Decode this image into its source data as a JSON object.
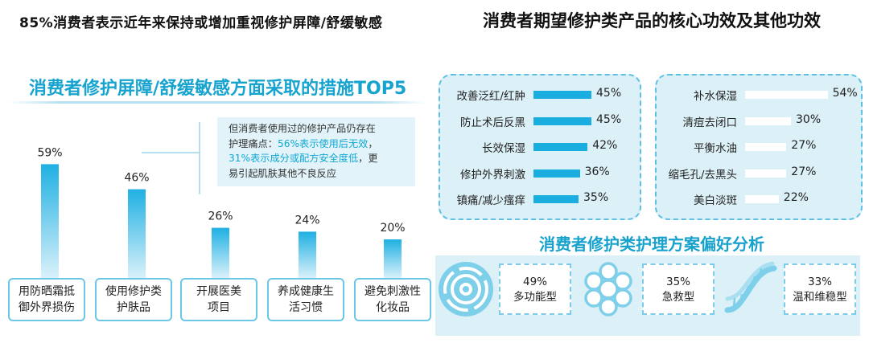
{
  "left": {
    "title": "85%消费者表示近年来保持或增加重视修护屏障/舒缓敏感",
    "subtitle": "消费者修护屏障/舒缓敏感方面采取的措施TOP5",
    "callout": {
      "line1": "但消费者使用过的修护产品仍存在",
      "line2a": "护理痛点：",
      "line2b": "56%表示使用后无效",
      "line2c": "，",
      "line3a": "31%表示成分或配方安全度低",
      "line3b": "，更",
      "line4": "易引起肌肤其他不良反应"
    },
    "categories": [
      {
        "line1": "用防晒霜抵",
        "line2": "御外界损伤"
      },
      {
        "line1": "使用修护类",
        "line2": "护肤品"
      },
      {
        "line1": "开展医美",
        "line2": "项目"
      },
      {
        "line1": "养成健康生",
        "line2": "活习惯"
      },
      {
        "line1": "避免刺激性",
        "line2": "化妆品"
      }
    ]
  },
  "right": {
    "title": "消费者期望修护类产品的核心功效及其他功效",
    "left_panel": [
      {
        "label": "改善泛红/红肿",
        "pct": "45%"
      },
      {
        "label": "防止术后反黑",
        "pct": "45%"
      },
      {
        "label": "长效保湿",
        "pct": "42%"
      },
      {
        "label": "修护外界刺激",
        "pct": "36%"
      },
      {
        "label": "镇痛/减少瘙痒",
        "pct": "35%"
      }
    ],
    "right_panel": [
      {
        "label": "补水保湿",
        "pct": "54%"
      },
      {
        "label": "清痘去闭口",
        "pct": "30%"
      },
      {
        "label": "平衡水油",
        "pct": "27%"
      },
      {
        "label": "缩毛孔/去黑头",
        "pct": "27%"
      },
      {
        "label": "美白淡斑",
        "pct": "22%"
      }
    ],
    "subtitle": "消费者修护类护理方案偏好分析",
    "preferences": [
      {
        "pct": "49%",
        "label": "多功能型",
        "icon": "concentric-rings-icon"
      },
      {
        "pct": "35%",
        "label": "急救型",
        "icon": "bubble-cluster-icon"
      },
      {
        "pct": "33%",
        "label": "温和维稳型",
        "icon": "dna-helix-icon"
      }
    ]
  },
  "colors": {
    "accent": "#16a3cf",
    "bar_top": "#1fb0e3",
    "bar_bottom": "#d9f1fa",
    "panel_bg": "#dcf0f8",
    "panel_border": "#5ec1e3",
    "bar_blue": "#1aaee0",
    "bar_white": "#ffffff"
  },
  "chart_data": [
    {
      "type": "bar",
      "title": "消费者修护屏障/舒缓敏感方面采取的措施TOP5",
      "categories": [
        "用防晒霜抵御外界损伤",
        "使用修护类护肤品",
        "开展医美项目",
        "养成健康生活习惯",
        "避免刺激性化妆品"
      ],
      "values": [
        59,
        46,
        26,
        24,
        20
      ],
      "value_labels": [
        "59%",
        "46%",
        "26%",
        "24%",
        "20%"
      ],
      "unit": "%",
      "ylim": [
        0,
        65
      ],
      "grid": false
    },
    {
      "type": "bar",
      "orientation": "horizontal",
      "categories": [
        "改善泛红/红肿",
        "防止术后反黑",
        "长效保湿",
        "修护外界刺激",
        "镇痛/减少瘙痒"
      ],
      "values": [
        45,
        45,
        42,
        36,
        35
      ],
      "unit": "%"
    },
    {
      "type": "bar",
      "orientation": "horizontal",
      "categories": [
        "补水保湿",
        "清痘去闭口",
        "平衡水油",
        "缩毛孔/去黑头",
        "美白淡斑"
      ],
      "values": [
        54,
        30,
        27,
        27,
        22
      ],
      "unit": "%"
    },
    {
      "type": "table",
      "categories": [
        "多功能型",
        "急救型",
        "温和维稳型"
      ],
      "values": [
        49,
        35,
        33
      ],
      "unit": "%"
    }
  ]
}
